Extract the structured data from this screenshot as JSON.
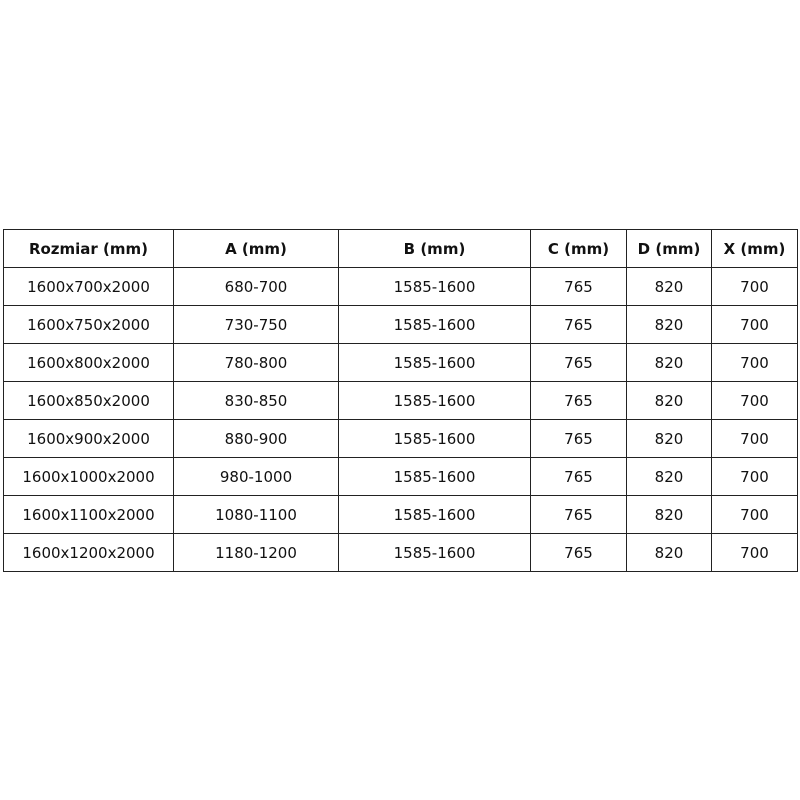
{
  "table": {
    "headers": [
      "Rozmiar (mm)",
      "A (mm)",
      "B (mm)",
      "C (mm)",
      "D (mm)",
      "X (mm)"
    ],
    "rows": [
      [
        "1600x700x2000",
        "680-700",
        "1585-1600",
        "765",
        "820",
        "700"
      ],
      [
        "1600x750x2000",
        "730-750",
        "1585-1600",
        "765",
        "820",
        "700"
      ],
      [
        "1600x800x2000",
        "780-800",
        "1585-1600",
        "765",
        "820",
        "700"
      ],
      [
        "1600x850x2000",
        "830-850",
        "1585-1600",
        "765",
        "820",
        "700"
      ],
      [
        "1600x900x2000",
        "880-900",
        "1585-1600",
        "765",
        "820",
        "700"
      ],
      [
        "1600x1000x2000",
        "980-1000",
        "1585-1600",
        "765",
        "820",
        "700"
      ],
      [
        "1600x1100x2000",
        "1080-1100",
        "1585-1600",
        "765",
        "820",
        "700"
      ],
      [
        "1600x1200x2000",
        "1180-1200",
        "1585-1600",
        "765",
        "820",
        "700"
      ]
    ]
  }
}
